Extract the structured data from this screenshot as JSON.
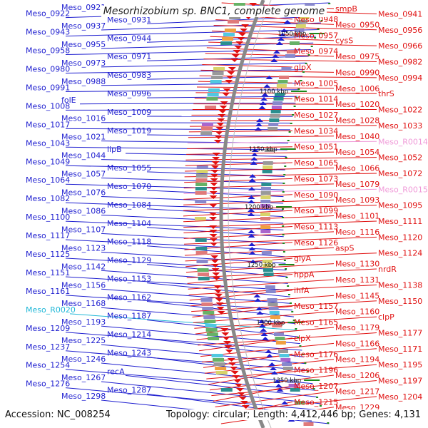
{
  "title": "Mesorhizobium sp. BNC1, complete genome",
  "accession": "Accession: NC_008254",
  "topology": "Topology: circular; Length: 4,412,446 bp; Genes: 4,131",
  "colors": {
    "left_genes": "#1f1fd0",
    "right_genes": "#e01010",
    "rna_left": "#22b8d8",
    "rna_right": "#f09ad8",
    "backbone": "#888888",
    "tick": "#1a8a1a"
  },
  "kbp_markers": [
    {
      "label": "1050 kbp",
      "kbp": 1050
    },
    {
      "label": "1100 kbp",
      "kbp": 1100
    },
    {
      "label": "1150 kbp",
      "kbp": 1150
    },
    {
      "label": "1200 kbp",
      "kbp": 1200
    },
    {
      "label": "1250 kbp",
      "kbp": 1250
    },
    {
      "label": "1300 kbp",
      "kbp": 1300
    },
    {
      "label": "1350 kbp",
      "kbp": 1350
    }
  ],
  "left_labels": [
    "Meso_0921",
    "Meso_0922",
    "Meso_0931",
    "Meso_0937",
    "Meso_0943",
    "Meso_0944",
    "Meso_0955",
    "Meso_0958",
    "Meso_0971",
    "Meso_0973",
    "Meso_0980",
    "Meso_0983",
    "Meso_0988",
    "Meso_0991",
    "Meso_0996",
    "folE",
    "Meso_1008",
    "Meso_1009",
    "Meso_1016",
    "Meso_1017",
    "Meso_1019",
    "Meso_1021",
    "Meso_1043",
    "lipB",
    "Meso_1044",
    "Meso_1049",
    "Meso_1055",
    "Meso_1057",
    "Meso_1064",
    "Meso_1070",
    "Meso_1076",
    "Meso_1082",
    "Meso_1084",
    "Meso_1086",
    "Meso_1100",
    "Meso_1104",
    "Meso_1107",
    "Meso_1117",
    "Meso_1118",
    "Meso_1123",
    "Meso_1125",
    "Meso_1129",
    "Meso_1142",
    "Meso_1151",
    "Meso_1153",
    "Meso_1156",
    "Meso_1161",
    "Meso_1162",
    "Meso_1168",
    "Meso_R0020",
    "Meso_1187",
    "Meso_1193",
    "Meso_1209",
    "Meso_1214",
    "Meso_1225",
    "Meso_1237",
    "Meso_1243",
    "Meso_1246",
    "Meso_1254",
    "recA",
    "Meso_1267",
    "Meso_1276",
    "Meso_1287",
    "Meso_1298"
  ],
  "right_labels": [
    "smpB",
    "Meso_0941",
    "Meso_0948",
    "Meso_0950",
    "Meso_0956",
    "Meso_0957",
    "cysS",
    "Meso_0966",
    "Meso_0974",
    "Meso_0975",
    "Meso_0982",
    "glpX",
    "Meso_0990",
    "Meso_0994",
    "Meso_1005",
    "Meso_1006",
    "thrS",
    "Meso_1014",
    "Meso_1020",
    "Meso_1022",
    "Meso_1027",
    "Meso_1028",
    "Meso_1033",
    "Meso_1034",
    "Meso_1040",
    "Meso_R0014",
    "Meso_1051",
    "Meso_1054",
    "Meso_1052",
    "Meso_1065",
    "Meso_1066",
    "Meso_1072",
    "Meso_1073",
    "Meso_1079",
    "Meso_R0015",
    "Meso_1090",
    "Meso_1093",
    "Meso_1095",
    "Meso_1099",
    "Meso_1101",
    "Meso_1111",
    "Meso_1113",
    "Meso_1116",
    "Meso_1120",
    "Meso_1126",
    "aspS",
    "Meso_1124",
    "glyA",
    "Meso_1130",
    "nrdR",
    "hppA",
    "Meso_1131",
    "Meso_1138",
    "ihfA",
    "Meso_1145",
    "Meso_1150",
    "Meso_1157",
    "Meso_1160",
    "clpP",
    "Meso_1165",
    "Meso_1179",
    "Meso_1177",
    "clpX",
    "Meso_1166",
    "Meso_1171",
    "Meso_1176",
    "Meso_1194",
    "Meso_1195",
    "Meso_1196",
    "Meso_1206",
    "Meso_1197",
    "Meso_1207",
    "Meso_1217",
    "Meso_1204",
    "Meso_1215",
    "Meso_1229"
  ],
  "rna_labels": [
    "Meso_R0020",
    "Meso_R0014",
    "Meso_R0015"
  ]
}
